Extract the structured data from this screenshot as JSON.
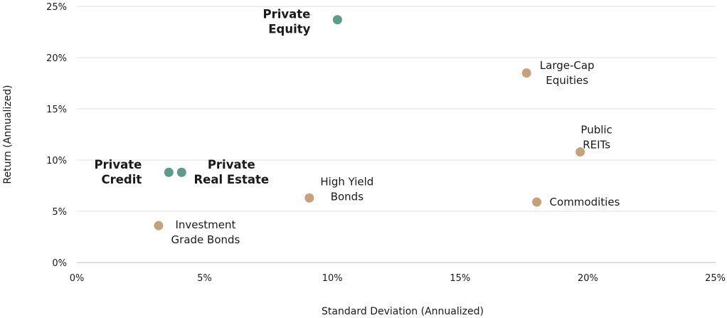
{
  "chart_data": {
    "type": "scatter",
    "xlabel": "Standard Deviation (Annualized)",
    "ylabel": "Return (Annualized)",
    "xlim": [
      0,
      25
    ],
    "ylim": [
      0,
      25
    ],
    "x_ticks": [
      "0%",
      "5%",
      "10%",
      "15%",
      "20%",
      "25%"
    ],
    "y_ticks": [
      "0%",
      "5%",
      "10%",
      "15%",
      "20%",
      "25%"
    ],
    "grid": "horizontal",
    "colors": {
      "private": "#5d9b8a",
      "public": "#c4a27b"
    },
    "points": [
      {
        "name": [
          "Private",
          "Equity"
        ],
        "x": 10.2,
        "y": 23.7,
        "group": "private",
        "label_pos": "left"
      },
      {
        "name": [
          "Private",
          "Credit"
        ],
        "x": 3.6,
        "y": 8.8,
        "group": "private",
        "label_pos": "left"
      },
      {
        "name": [
          "Private",
          "Real Estate"
        ],
        "x": 4.1,
        "y": 8.8,
        "group": "private",
        "label_pos": "right"
      },
      {
        "name": [
          "Large-Cap",
          "Equities"
        ],
        "x": 17.6,
        "y": 18.5,
        "group": "public",
        "label_pos": "right"
      },
      {
        "name": [
          "Public",
          "REITs"
        ],
        "x": 19.7,
        "y": 10.8,
        "group": "public",
        "label_pos": "above"
      },
      {
        "name": [
          "High Yield",
          "Bonds"
        ],
        "x": 9.1,
        "y": 6.3,
        "group": "public",
        "label_pos": "above-right"
      },
      {
        "name": [
          "Commodities"
        ],
        "x": 18.0,
        "y": 5.9,
        "group": "public",
        "label_pos": "right"
      },
      {
        "name": [
          "Investment",
          "Grade Bonds"
        ],
        "x": 3.2,
        "y": 3.6,
        "group": "public",
        "label_pos": "right-below"
      }
    ]
  }
}
